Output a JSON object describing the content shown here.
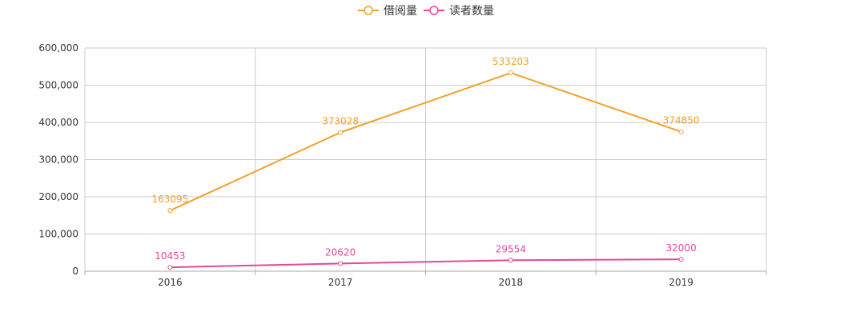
{
  "chart_data": {
    "type": "line",
    "categories": [
      "2016",
      "2017",
      "2018",
      "2019"
    ],
    "series": [
      {
        "name": "借阅量",
        "color": "#f3a02b",
        "values": [
          163095,
          373028,
          533203,
          374850
        ]
      },
      {
        "name": "读者数量",
        "color": "#e4489a",
        "values": [
          10453,
          20620,
          29554,
          32000
        ]
      }
    ],
    "y_ticks": [
      "0",
      "100,000",
      "200,000",
      "300,000",
      "400,000",
      "500,000",
      "600,000"
    ],
    "ylim": [
      0,
      600000
    ],
    "grid": true,
    "legend_position": "top-center"
  }
}
